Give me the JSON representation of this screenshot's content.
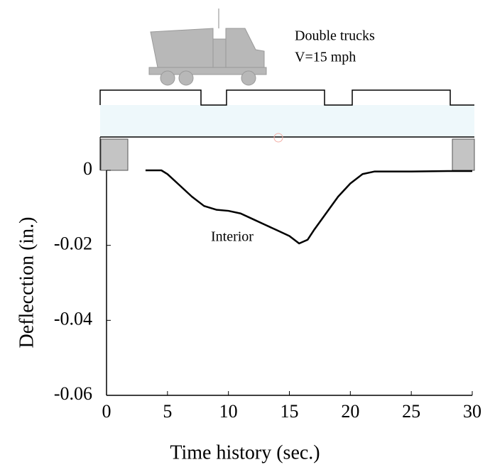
{
  "chart_data": {
    "type": "line",
    "x_label": "Time history (sec.)",
    "y_label": "Deflecction (in.)",
    "annotations": [
      "Double trucks",
      "V=15 mph",
      "Interior"
    ],
    "xlim": [
      0,
      30
    ],
    "ylim": [
      -0.06,
      0
    ],
    "xticks": [
      0,
      5,
      10,
      15,
      20,
      25,
      30
    ],
    "yticks": [
      0,
      -0.02,
      -0.04,
      -0.06
    ],
    "x": [
      3.2,
      4.5,
      5,
      6,
      7,
      8,
      9,
      10,
      11,
      12,
      13,
      14,
      15,
      15.8,
      16.5,
      17,
      18,
      19,
      20,
      21,
      22,
      25,
      28,
      30
    ],
    "series": [
      {
        "name": "Interior",
        "color": "#000000",
        "values": [
          0,
          0,
          -0.001,
          -0.004,
          -0.007,
          -0.0095,
          -0.0105,
          -0.0108,
          -0.0115,
          -0.013,
          -0.0145,
          -0.016,
          -0.0175,
          -0.0195,
          -0.0185,
          -0.016,
          -0.0115,
          -0.007,
          -0.0035,
          -0.001,
          -0.0003,
          -0.0003,
          -0.0002,
          -0.0002
        ]
      }
    ]
  }
}
